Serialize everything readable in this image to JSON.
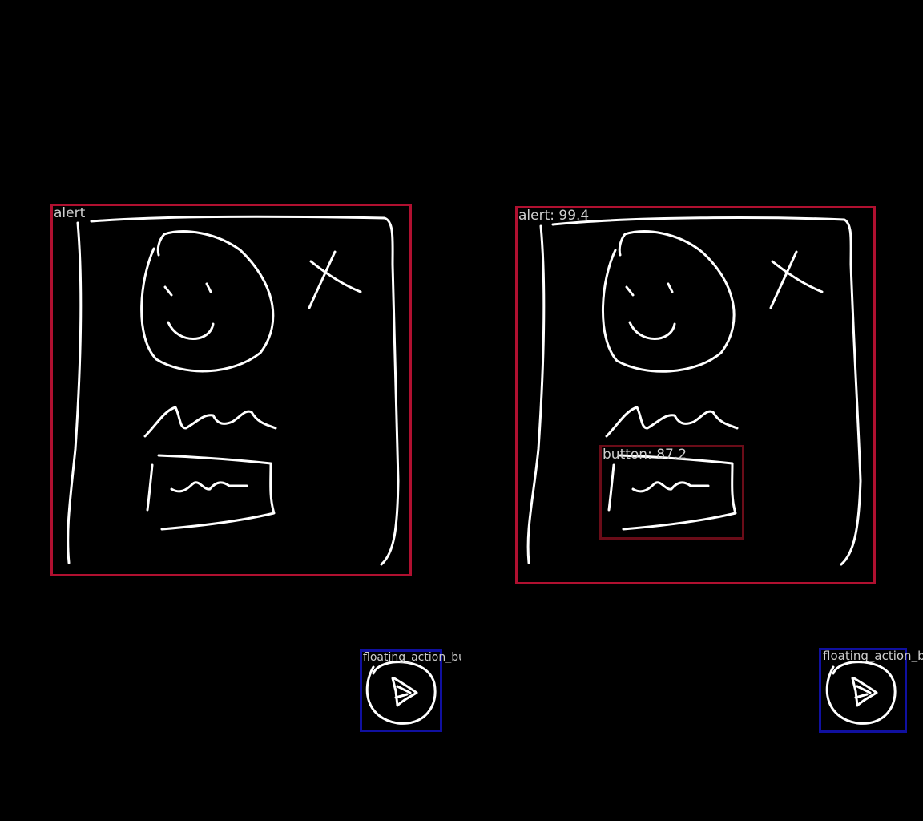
{
  "left_panel": {
    "alert_label": "alert",
    "fab_label": "floating_action_button"
  },
  "right_panel": {
    "alert_label": "alert: 99.4",
    "button_label": "button: 87.2",
    "fab_label": "floating_action_button"
  },
  "colors": {
    "alert_box": "#b01030",
    "button_box": "#6a0c18",
    "fab_box": "#1010a0",
    "sketch_stroke": "#ffffff",
    "label_text": "#cfcfcf",
    "background": "#000000"
  }
}
